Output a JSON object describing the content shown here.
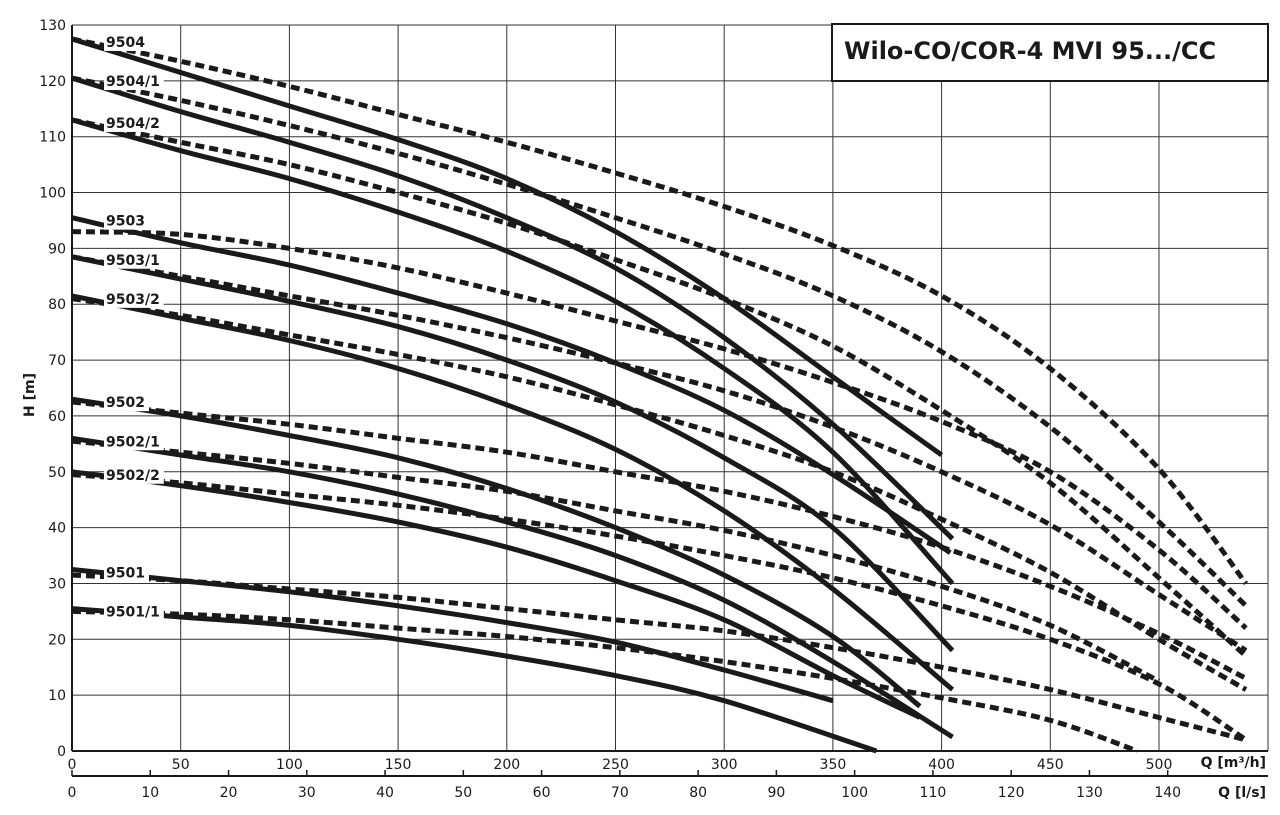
{
  "chart_data": {
    "type": "line",
    "title": "Wilo-CO/COR-4 MVI 95.../CC",
    "ylabel": "H [m]",
    "xlabel_primary": "Q [m³/h]",
    "xlabel_secondary": "Q [l/s]",
    "ylim": [
      0,
      130
    ],
    "xlim_m3h": [
      0,
      550
    ],
    "xlim_ls": [
      0,
      152.8
    ],
    "y_ticks": [
      0,
      10,
      20,
      30,
      40,
      50,
      60,
      70,
      80,
      90,
      100,
      110,
      120,
      130
    ],
    "x_ticks_m3h": [
      0,
      50,
      100,
      150,
      200,
      250,
      300,
      350,
      400,
      450,
      500
    ],
    "x_ticks_ls": [
      0,
      10,
      20,
      30,
      40,
      50,
      60,
      70,
      80,
      90,
      100,
      110,
      120,
      130,
      140
    ],
    "grid": true,
    "solid_series": [
      {
        "name": "9504",
        "shutoff": 127.5,
        "x": [
          0,
          25,
          50,
          100,
          150,
          200,
          250,
          300,
          350,
          400
        ],
        "y": [
          127.5,
          124.5,
          121.5,
          115.5,
          109.5,
          102.5,
          93,
          81,
          67,
          53
        ]
      },
      {
        "name": "9504/1",
        "shutoff": 120.5,
        "x": [
          0,
          50,
          100,
          150,
          200,
          250,
          300,
          350,
          405
        ],
        "y": [
          120.5,
          114.5,
          109,
          103,
          95.5,
          86.5,
          74,
          58.5,
          38
        ]
      },
      {
        "name": "9504/2",
        "shutoff": 113,
        "x": [
          0,
          50,
          100,
          150,
          200,
          250,
          300,
          350,
          405
        ],
        "y": [
          113,
          107.5,
          102.5,
          96.5,
          89.5,
          80.5,
          68.5,
          53.5,
          30
        ]
      },
      {
        "name": "9503",
        "shutoff": 95.5,
        "x": [
          0,
          50,
          100,
          150,
          200,
          250,
          300,
          350,
          404
        ],
        "y": [
          95.5,
          91,
          87,
          82,
          76.5,
          69.5,
          61,
          49.5,
          35.5
        ]
      },
      {
        "name": "9503/1",
        "shutoff": 88.5,
        "x": [
          0,
          50,
          100,
          150,
          200,
          250,
          300,
          350,
          405
        ],
        "y": [
          88.5,
          84.5,
          80.5,
          76,
          70,
          62.5,
          52.5,
          40,
          18
        ]
      },
      {
        "name": "9503/2",
        "shutoff": 81.5,
        "x": [
          0,
          50,
          100,
          150,
          200,
          250,
          300,
          350,
          405
        ],
        "y": [
          81.5,
          77.5,
          73.5,
          68.5,
          62,
          54,
          43,
          29,
          11
        ]
      },
      {
        "name": "9502",
        "shutoff": 63,
        "x": [
          0,
          50,
          100,
          150,
          200,
          250,
          300,
          350,
          390
        ],
        "y": [
          63,
          60,
          56.5,
          52.5,
          47,
          40,
          31.5,
          20.5,
          8
        ]
      },
      {
        "name": "9502/1",
        "shutoff": 56,
        "x": [
          0,
          50,
          100,
          150,
          200,
          250,
          300,
          350,
          405
        ],
        "y": [
          56,
          53,
          50,
          46,
          41,
          35,
          27,
          16,
          2.5
        ]
      },
      {
        "name": "9502/2",
        "shutoff": 50,
        "x": [
          0,
          50,
          100,
          150,
          200,
          250,
          300,
          350,
          390
        ],
        "y": [
          50,
          47.5,
          44.5,
          41,
          36.5,
          30.5,
          23.5,
          13.5,
          6
        ]
      },
      {
        "name": "9501",
        "shutoff": 32.5,
        "x": [
          0,
          50,
          100,
          150,
          200,
          250,
          300,
          350
        ],
        "y": [
          32.5,
          30.5,
          28.5,
          26,
          23,
          19.5,
          14.5,
          9
        ]
      },
      {
        "name": "9501/1",
        "shutoff": 25.5,
        "x": [
          0,
          50,
          100,
          150,
          200,
          250,
          300,
          370
        ],
        "y": [
          25.5,
          24,
          22.5,
          20,
          17,
          13.5,
          9,
          0
        ]
      }
    ],
    "dashed_series": [
      {
        "name": "9504 (full range)",
        "x": [
          0,
          50,
          100,
          150,
          200,
          250,
          300,
          350,
          400,
          450,
          500,
          540
        ],
        "y": [
          127.5,
          123.5,
          119,
          114,
          109,
          103.5,
          97.5,
          90.5,
          81.5,
          68.5,
          50.5,
          30
        ]
      },
      {
        "name": "9504/1 (full range)",
        "x": [
          0,
          50,
          100,
          150,
          200,
          250,
          300,
          350,
          400,
          450,
          500,
          540
        ],
        "y": [
          120.5,
          116.5,
          112,
          107,
          101.5,
          95.5,
          89,
          81.5,
          71.5,
          58,
          41,
          26
        ]
      },
      {
        "name": "9504/2 (full range)",
        "x": [
          0,
          50,
          100,
          150,
          200,
          250,
          300,
          350,
          400,
          450,
          500,
          540
        ],
        "y": [
          113,
          109,
          105,
          100,
          94.5,
          88,
          81,
          72.5,
          61,
          48,
          31,
          17
        ]
      },
      {
        "name": "9503 (full range)",
        "x": [
          0,
          50,
          100,
          150,
          200,
          250,
          300,
          350,
          400,
          450,
          500,
          540
        ],
        "y": [
          93,
          92.5,
          90,
          86.5,
          82,
          77,
          72,
          66,
          59,
          50,
          36,
          22
        ]
      },
      {
        "name": "9503/1 (full range)",
        "x": [
          0,
          50,
          100,
          150,
          200,
          250,
          300,
          350,
          400,
          450,
          500,
          540
        ],
        "y": [
          88.5,
          85,
          81.5,
          78,
          74,
          69.5,
          64.5,
          58,
          50,
          40.5,
          28,
          18
        ]
      },
      {
        "name": "9503/2 (full range)",
        "x": [
          0,
          50,
          100,
          150,
          200,
          250,
          300,
          350,
          400,
          450,
          500,
          540
        ],
        "y": [
          81,
          78,
          74.5,
          71,
          67,
          62,
          56.5,
          50,
          41.5,
          32,
          20,
          11
        ]
      },
      {
        "name": "9502 (full range)",
        "x": [
          0,
          50,
          100,
          150,
          200,
          250,
          300,
          350,
          400,
          450,
          500,
          540
        ],
        "y": [
          62.5,
          60.5,
          58.5,
          56,
          53.5,
          50,
          46.5,
          42,
          36.5,
          29.5,
          21,
          13
        ]
      },
      {
        "name": "9502/1 (full range)",
        "x": [
          0,
          50,
          100,
          150,
          200,
          250,
          300,
          350,
          400,
          450,
          500
        ],
        "y": [
          55.5,
          53.5,
          51.5,
          49,
          46.5,
          43,
          39.5,
          35,
          29.5,
          22.5,
          12.5
        ]
      },
      {
        "name": "9502/2 (full range)",
        "x": [
          0,
          50,
          100,
          150,
          200,
          250,
          300,
          350,
          400,
          450,
          500,
          540
        ],
        "y": [
          49.5,
          48,
          46,
          44,
          41.5,
          38.5,
          35,
          31,
          26,
          20,
          12,
          2
        ]
      },
      {
        "name": "9501 (full range)",
        "x": [
          0,
          50,
          100,
          150,
          200,
          250,
          300,
          350,
          400,
          450,
          500,
          540
        ],
        "y": [
          31.5,
          30.5,
          29,
          27.5,
          25.5,
          23.5,
          21.5,
          18.5,
          15,
          11,
          6,
          2
        ]
      },
      {
        "name": "9501/1 (full range)",
        "x": [
          0,
          50,
          100,
          150,
          200,
          250,
          300,
          350,
          400,
          450,
          490
        ],
        "y": [
          25,
          24.5,
          23.5,
          22,
          20.5,
          18.5,
          16,
          13,
          9.5,
          5.5,
          0
        ]
      }
    ]
  }
}
